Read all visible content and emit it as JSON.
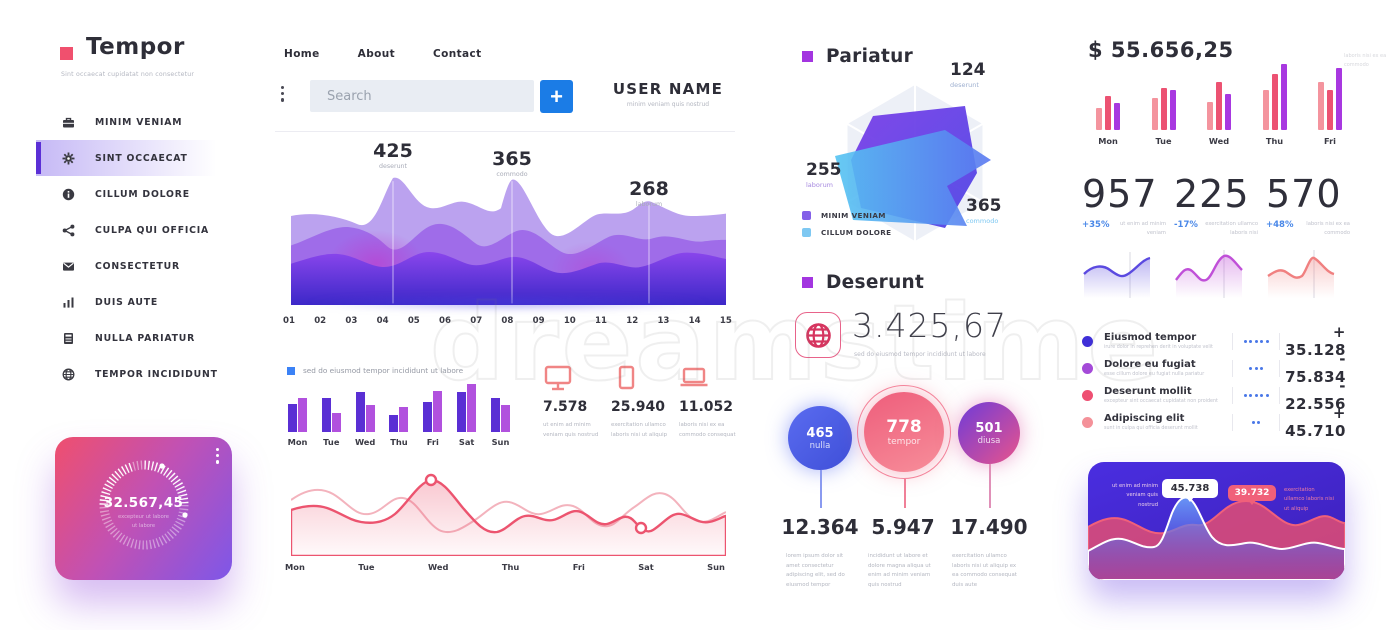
{
  "watermark": "dreamstime",
  "sidebar": {
    "logo": {
      "title": "Tempor",
      "tagline": "Sint occaecat cupidatat non consectetur"
    },
    "items": [
      {
        "label": "MINIM VENIAM",
        "icon": "briefcase-icon",
        "active": false
      },
      {
        "label": "SINT OCCAECAT",
        "icon": "gear-icon",
        "active": true
      },
      {
        "label": "CILLUM DOLORE",
        "icon": "info-icon",
        "active": false
      },
      {
        "label": "CULPA QUI OFFICIA",
        "icon": "share-icon",
        "active": false
      },
      {
        "label": "CONSECTETUR",
        "icon": "mail-icon",
        "active": false
      },
      {
        "label": "DUIS AUTE",
        "icon": "bar-chart-icon",
        "active": false
      },
      {
        "label": "NULLA PARIATUR",
        "icon": "calculator-icon",
        "active": false
      },
      {
        "label": "TEMPOR INCIDIDUNT",
        "icon": "globe-icon",
        "active": false
      }
    ],
    "gauge_card": {
      "value": "32.567,45",
      "caption_line1": "excepteur ut labore",
      "caption_line2": "ut labore"
    }
  },
  "topnav": {
    "links": [
      "Home",
      "About",
      "Contact"
    ],
    "search_placeholder": "Search",
    "plus_label": "+",
    "user_name": "USER NAME",
    "user_subtitle": "minim veniam quis nostrud"
  },
  "area_chart": {
    "x_labels": [
      "01",
      "02",
      "03",
      "04",
      "05",
      "06",
      "07",
      "08",
      "09",
      "10",
      "11",
      "12",
      "13",
      "14",
      "15"
    ],
    "callouts": [
      {
        "value": "425",
        "label": "deserunt"
      },
      {
        "value": "365",
        "label": "commodo"
      },
      {
        "value": "268",
        "label": "laborum"
      }
    ]
  },
  "weekly_bars": {
    "legend": "sed do eiusmod tempor incididunt ut labore",
    "days": [
      "Mon",
      "Tue",
      "Wed",
      "Thu",
      "Fri",
      "Sat",
      "Sun"
    ],
    "series_a": [
      28,
      34,
      40,
      17,
      30,
      40,
      34
    ],
    "series_b": [
      34,
      19,
      27,
      25,
      41,
      48,
      27
    ]
  },
  "devices": [
    {
      "icon": "monitor-icon",
      "value": "7.578",
      "caption": "ut enim ad minim veniam quis nostrud"
    },
    {
      "icon": "tablet-icon",
      "value": "25.940",
      "caption": "exercitation ullamco laboris nisi ut aliquip"
    },
    {
      "icon": "laptop-icon",
      "value": "11.052",
      "caption": "laboris nisi ex ea commodo consequat"
    }
  ],
  "weekly_line": {
    "days": [
      "Mon",
      "Tue",
      "Wed",
      "Thu",
      "Fri",
      "Sat",
      "Sun"
    ]
  },
  "pariatur": {
    "title": "Pariatur",
    "callouts": [
      {
        "value": "124",
        "label": "deserunt"
      },
      {
        "value": "255",
        "label": "laborum"
      },
      {
        "value": "365",
        "label": "commodo"
      }
    ],
    "legend": [
      {
        "label": "MINIM VENIAM",
        "color": "#8460e8"
      },
      {
        "label": "CILLUM DOLORE",
        "color": "#7ec8f2"
      }
    ]
  },
  "deserunt": {
    "title": "Deserunt",
    "value": "3.425,67",
    "caption": "sed do eiusmod tempor incididunt ut labore"
  },
  "bubbles": [
    {
      "value": "465",
      "label": "nulla",
      "number": "12.364",
      "caption": "lorem ipsum dolor sit amet consectetur adipiscing elit, sed do eiusmod tempor"
    },
    {
      "value": "778",
      "label": "tempor",
      "number": "5.947",
      "caption": "incididunt ut labore et dolore magna aliqua ut enim ad minim veniam quis nostrud"
    },
    {
      "value": "501",
      "label": "diusa",
      "number": "17.490",
      "caption": "exercitation ullamco laboris nisi ut aliquip ex ea commodo consequat duis aute"
    }
  ],
  "revenue": {
    "amount": "$ 55.656,25",
    "note": "laboris nisi ex ea commodo",
    "days": [
      "Mon",
      "Tue",
      "Wed",
      "Thu",
      "Fri"
    ],
    "values": [
      [
        22,
        34,
        27
      ],
      [
        32,
        42,
        40
      ],
      [
        28,
        48,
        36
      ],
      [
        40,
        56,
        66
      ],
      [
        48,
        40,
        62
      ]
    ],
    "bar_colors": [
      "#f4949e",
      "#ec5272",
      "#a838e0"
    ]
  },
  "stats": [
    {
      "value": "957",
      "delta": "+35%",
      "caption": "ut enim ad minim veniam"
    },
    {
      "value": "225",
      "delta": "-17%",
      "caption": "exercitation ullamco laboris nisi"
    },
    {
      "value": "570",
      "delta": "+48%",
      "caption": "laboris nisi ex ea commodo"
    }
  ],
  "metrics": [
    {
      "name": "Eiusmod tempor",
      "caption": "irure dolor in reprehen derit in voluptate velit",
      "dots": 5,
      "value": "+ 35.128",
      "color": "#3f2fd8"
    },
    {
      "name": "Dolore eu fugiat",
      "caption": "esse cillum dolore eu fugiat nulla pariatur",
      "dots": 3,
      "value": "- 75.834",
      "color": "#a44ad8"
    },
    {
      "name": "Deserunt mollit",
      "caption": "excepteur sint occaecat cupidatat non proident",
      "dots": 5,
      "value": "- 22.556",
      "color": "#ee4f72"
    },
    {
      "name": "Adipiscing elit",
      "caption": "sunt in culpa qui officia deserunt mollit",
      "dots": 2,
      "value": "+ 45.710",
      "color": "#f49199"
    }
  ],
  "dark_card": {
    "tooltip_a": "45.738",
    "tooltip_b": "39.732",
    "left_caption": "ut enim ad minim veniam quis nostrud",
    "right_caption": "exercitation ullamco laboris nisi ut aliquip"
  },
  "chart_data": [
    {
      "id": "main-area",
      "type": "area",
      "x": [
        "01",
        "02",
        "03",
        "04",
        "05",
        "06",
        "07",
        "08",
        "09",
        "10",
        "11",
        "12",
        "13",
        "14",
        "15"
      ],
      "annotations": [
        {
          "x": "04",
          "value": 425,
          "label": "deserunt"
        },
        {
          "x": "08",
          "value": 365,
          "label": "commodo"
        },
        {
          "x": "12",
          "value": 268,
          "label": "laborum"
        }
      ],
      "note": "three stacked purple wave layers, no numeric axis"
    },
    {
      "id": "weekly-bars",
      "type": "bar",
      "categories": [
        "Mon",
        "Tue",
        "Wed",
        "Thu",
        "Fri",
        "Sat",
        "Sun"
      ],
      "series": [
        {
          "name": "series-dark",
          "values": [
            28,
            34,
            40,
            17,
            30,
            40,
            34
          ]
        },
        {
          "name": "series-light",
          "values": [
            34,
            19,
            27,
            25,
            41,
            48,
            27
          ]
        }
      ],
      "title": "sed do eiusmod tempor incididunt ut labore",
      "note": "relative heights, no numeric axis"
    },
    {
      "id": "weekly-line",
      "type": "line",
      "categories": [
        "Mon",
        "Tue",
        "Wed",
        "Thu",
        "Fri",
        "Sat",
        "Sun"
      ],
      "series": [
        {
          "name": "dark-pink"
        },
        {
          "name": "light-pink"
        }
      ],
      "markers": [
        {
          "x": "Wed",
          "type": "peak"
        },
        {
          "x": "Sat",
          "type": "dip"
        }
      ]
    },
    {
      "id": "pariatur-radar",
      "type": "radar",
      "values": [
        {
          "label": "deserunt",
          "value": 124
        },
        {
          "label": "laborum",
          "value": 255
        },
        {
          "label": "commodo",
          "value": 365
        }
      ],
      "legend": [
        "MINIM VENIAM",
        "CILLUM DOLORE"
      ]
    },
    {
      "id": "revenue-bars",
      "type": "bar",
      "categories": [
        "Mon",
        "Tue",
        "Wed",
        "Thu",
        "Fri"
      ],
      "series": [
        {
          "name": "salmon",
          "values": [
            22,
            32,
            28,
            40,
            48
          ]
        },
        {
          "name": "red",
          "values": [
            34,
            42,
            48,
            56,
            40
          ]
        },
        {
          "name": "purple",
          "values": [
            27,
            40,
            36,
            66,
            62
          ]
        }
      ],
      "title": "$ 55.656,25",
      "note": "relative heights, no numeric axis"
    },
    {
      "id": "dark-card-waves",
      "type": "area",
      "series": [
        {
          "name": "blue",
          "peak_label": "45.738"
        },
        {
          "name": "pink",
          "peak_label": "39.732"
        }
      ]
    }
  ]
}
